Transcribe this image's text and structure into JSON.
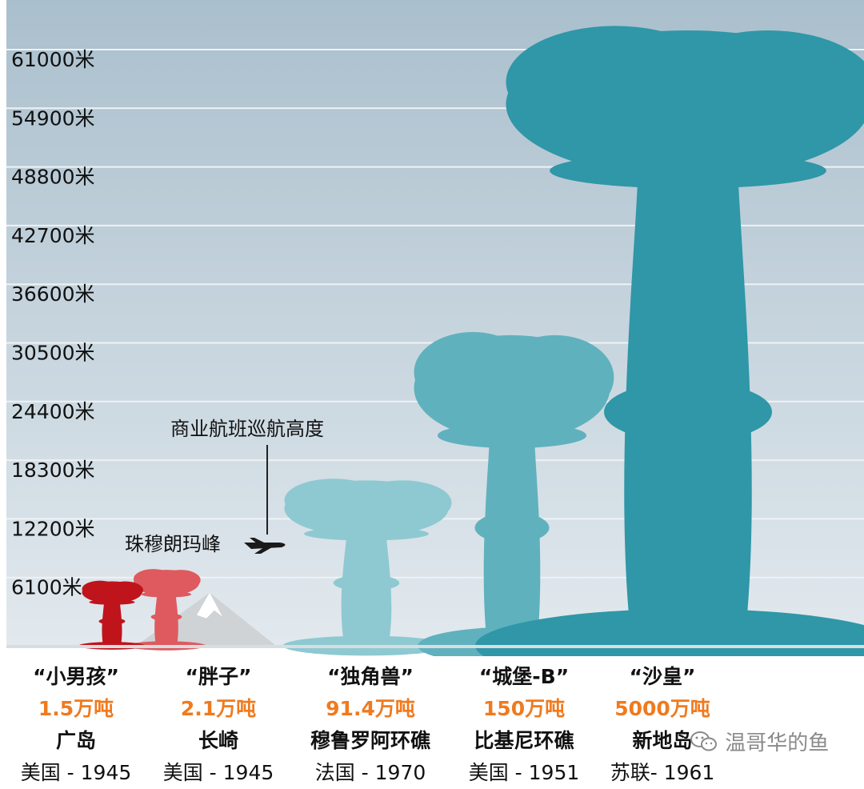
{
  "chart_data": {
    "type": "bar",
    "title": "",
    "xlabel": "",
    "ylabel": "",
    "ylim": [
      0,
      65000
    ],
    "y_ticks": [
      6100,
      12200,
      18300,
      24400,
      30500,
      36600,
      42700,
      48800,
      54900,
      61000
    ],
    "y_tick_labels": [
      "6100米",
      "12200米",
      "18300米",
      "24400米",
      "30500米",
      "36600米",
      "42700米",
      "48800米",
      "54900米",
      "61000米"
    ],
    "grid": true,
    "categories": [
      "“小男孩”",
      "“胖子”",
      "“独角兽”",
      "“城堡-B”",
      "“沙皇”"
    ],
    "values": [
      6700,
      7900,
      17200,
      32300,
      64000
    ],
    "bombs": [
      {
        "name": "“小男孩”",
        "yield": "1.5万吨",
        "site": "广岛",
        "origin": "美国 - 1945",
        "height": 6700,
        "color": "#c0141c"
      },
      {
        "name": "“胖子”",
        "yield": "2.1万吨",
        "site": "长崎",
        "origin": "美国 - 1945",
        "height": 7900,
        "color": "#de5a5e"
      },
      {
        "name": "“独角兽”",
        "yield": "91.4万吨",
        "site": "穆鲁罗阿环礁",
        "origin": "法国 - 1970",
        "height": 17200,
        "color": "#8ec9d1"
      },
      {
        "name": "“城堡-B”",
        "yield": "150万吨",
        "site": "比基尼环礁",
        "origin": "美国 - 1951",
        "height": 32300,
        "color": "#5fb1bd"
      },
      {
        "name": "“沙皇”",
        "yield": "5000万吨",
        "site": "新地岛",
        "origin": "苏联- 1961",
        "height": 64000,
        "color": "#2f97a7"
      }
    ],
    "annotations": [
      {
        "text": "商业航班巡航高度",
        "value": 11000
      },
      {
        "text": "珠穆朗玛峰",
        "value": 8848
      }
    ],
    "colors": {
      "yield_text": "#f07a1e",
      "sky_top": "#adc1cf",
      "sky_bottom": "#dfe7ec"
    }
  },
  "watermark": "温哥华的鱼",
  "watermark_icon": "wechat-icon",
  "plane_icon": "airplane-icon"
}
